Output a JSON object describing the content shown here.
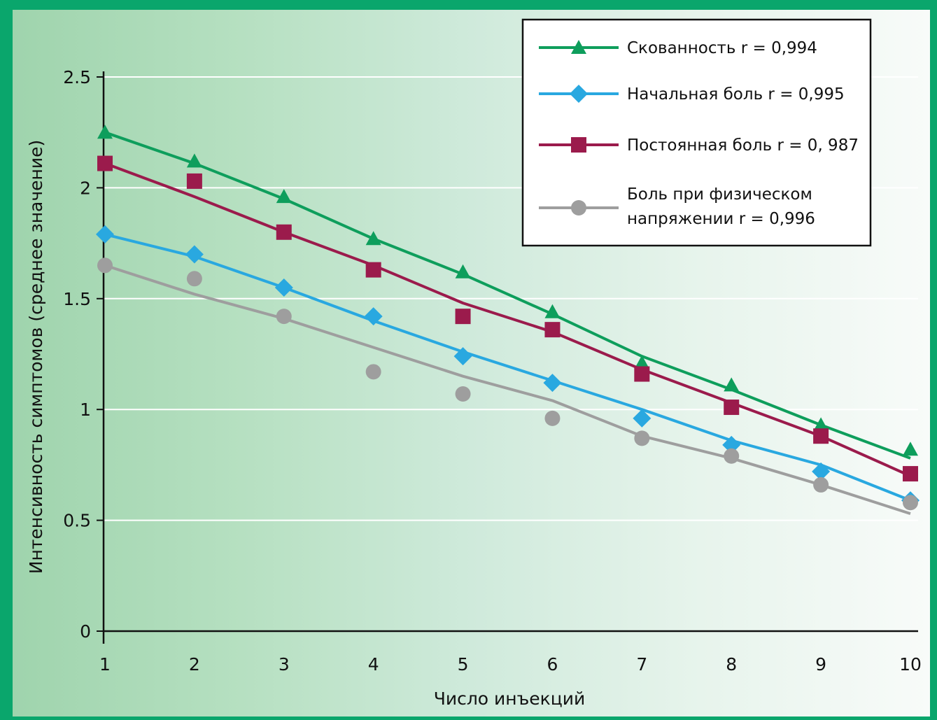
{
  "chart_data": {
    "type": "line",
    "title": "",
    "xlabel": "Число инъекций",
    "ylabel": "Интенсивность симптомов (среднее значение)",
    "x": [
      1,
      2,
      3,
      4,
      5,
      6,
      7,
      8,
      9,
      10
    ],
    "xlim": [
      1,
      10
    ],
    "ylim": [
      0,
      2.5
    ],
    "y_ticks": [
      "0",
      "0.5",
      "1",
      "1.5",
      "2",
      "2.5"
    ],
    "x_ticks": [
      "1",
      "2",
      "3",
      "4",
      "5",
      "6",
      "7",
      "8",
      "9",
      "10"
    ],
    "grid": "horizontal",
    "legend_position": "top-right",
    "series": [
      {
        "name": "Скованность r = 0,994",
        "marker": "triangle",
        "color": "#0e9e5c",
        "values": [
          2.25,
          2.12,
          1.96,
          1.77,
          1.62,
          1.44,
          1.21,
          1.11,
          0.93,
          0.82
        ],
        "trend": [
          2.25,
          2.11,
          1.95,
          1.77,
          1.61,
          1.43,
          1.24,
          1.09,
          0.93,
          0.78
        ]
      },
      {
        "name": "Начальная боль r = 0,995",
        "marker": "diamond",
        "color": "#29a8e0",
        "values": [
          1.79,
          1.7,
          1.55,
          1.42,
          1.24,
          1.12,
          0.96,
          0.84,
          0.72,
          0.59
        ],
        "trend": [
          1.79,
          1.69,
          1.55,
          1.4,
          1.26,
          1.13,
          1.0,
          0.86,
          0.75,
          0.59
        ]
      },
      {
        "name": "Постоянная боль r = 0, 987",
        "marker": "square",
        "color": "#9b1b4c",
        "values": [
          2.11,
          2.03,
          1.8,
          1.63,
          1.42,
          1.36,
          1.16,
          1.01,
          0.88,
          0.71
        ],
        "trend": [
          2.11,
          1.96,
          1.8,
          1.65,
          1.48,
          1.35,
          1.18,
          1.03,
          0.88,
          0.7
        ]
      },
      {
        "name": "Боль при физическом напряжении r = 0,996",
        "name_lines": [
          "Боль при физическом",
          "напряжении r = 0,996"
        ],
        "marker": "circle",
        "color": "#9e9e9e",
        "values": [
          1.65,
          1.59,
          1.42,
          1.17,
          1.07,
          0.96,
          0.87,
          0.79,
          0.66,
          0.58
        ],
        "trend": [
          1.65,
          1.52,
          1.41,
          1.28,
          1.15,
          1.04,
          0.88,
          0.78,
          0.66,
          0.53
        ]
      }
    ]
  }
}
